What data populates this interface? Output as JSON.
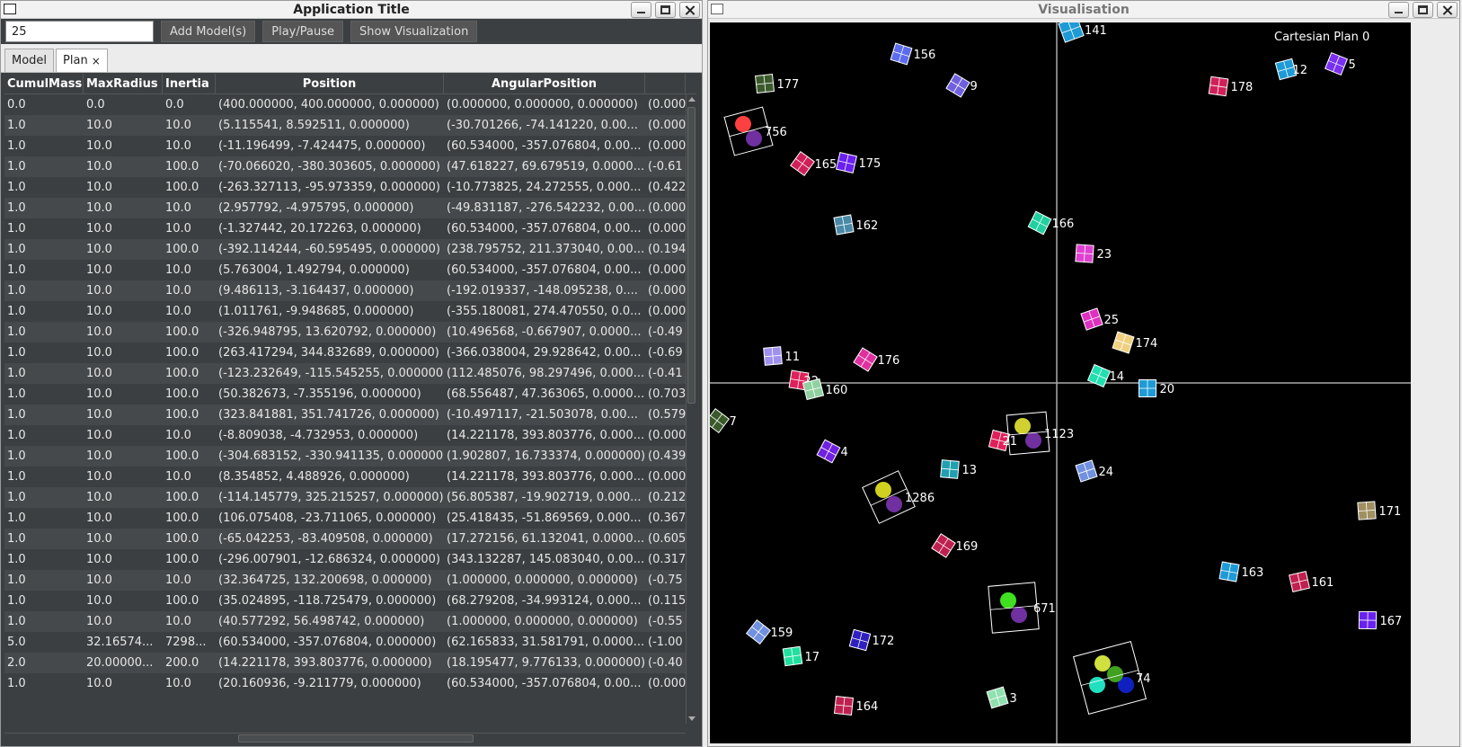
{
  "left_window": {
    "title": "Application Title",
    "toolbar": {
      "count_value": "25",
      "add_label": "Add Model(s)",
      "play_label": "Play/Pause",
      "show_label": "Show Visualization"
    },
    "tabs": [
      {
        "label": "Model"
      },
      {
        "label": "Plan",
        "close": "×"
      }
    ],
    "table": {
      "columns": [
        "CumulMass",
        "MaxRadius",
        "Inertia",
        "Position",
        "AngularPosition",
        ""
      ],
      "rows": [
        [
          "0.0",
          "0.0",
          "0.0",
          "(400.000000, 400.000000, 0.000000)",
          "(0.000000, 0.000000, 0.000000)",
          "(0.000"
        ],
        [
          "1.0",
          "10.0",
          "10.0",
          "(5.115541, 8.592511, 0.000000)",
          "(-30.701266, -74.141220, 0.00...",
          "(0.000"
        ],
        [
          "1.0",
          "10.0",
          "10.0",
          "(-11.196499, -7.424475, 0.000000)",
          "(60.534000, -357.076804, 0.00...",
          "(0.000"
        ],
        [
          "1.0",
          "10.0",
          "100.0",
          "(-70.066020, -380.303605, 0.000000)",
          "(47.618227, 69.679519, 0.0000...",
          "(-0.61"
        ],
        [
          "1.0",
          "10.0",
          "100.0",
          "(-263.327113, -95.973359, 0.000000)",
          "(-10.773825, 24.272555, 0.000...",
          "(0.422"
        ],
        [
          "1.0",
          "10.0",
          "10.0",
          "(2.957792, -4.975795, 0.000000)",
          "(-49.831187, -276.542232, 0.00...",
          "(0.000"
        ],
        [
          "1.0",
          "10.0",
          "10.0",
          "(-1.327442, 20.172263, 0.000000)",
          "(60.534000, -357.076804, 0.00...",
          "(0.000"
        ],
        [
          "1.0",
          "10.0",
          "100.0",
          "(-392.114244, -60.595495, 0.000000)",
          "(238.795752, 211.373040, 0.00...",
          "(0.194"
        ],
        [
          "1.0",
          "10.0",
          "10.0",
          "(5.763004, 1.492794, 0.000000)",
          "(60.534000, -357.076804, 0.00...",
          "(0.000"
        ],
        [
          "1.0",
          "10.0",
          "10.0",
          "(9.486113, -3.164437, 0.000000)",
          "(-192.019337, -148.095238, 0....",
          "(0.000"
        ],
        [
          "1.0",
          "10.0",
          "10.0",
          "(1.011761, -9.948685, 0.000000)",
          "(-355.180081, 274.470550, 0.0...",
          "(0.000"
        ],
        [
          "1.0",
          "10.0",
          "100.0",
          "(-326.948795, 13.620792, 0.000000)",
          "(10.496568, -0.667907, 0.0000...",
          "(-0.49"
        ],
        [
          "1.0",
          "10.0",
          "100.0",
          "(263.417294, 344.832689, 0.000000)",
          "(-366.038004, 29.928642, 0.00...",
          "(-0.69"
        ],
        [
          "1.0",
          "10.0",
          "100.0",
          "(-123.232649, -115.545255, 0.000000)",
          "(112.485076, 98.297496, 0.000...",
          "(-0.41"
        ],
        [
          "1.0",
          "10.0",
          "100.0",
          "(50.382673, -7.355196, 0.000000)",
          "(68.556487, 47.363065, 0.0000...",
          "(0.703"
        ],
        [
          "1.0",
          "10.0",
          "100.0",
          "(323.841881, 351.741726, 0.000000)",
          "(-10.497117, -21.503078, 0.00...",
          "(0.579"
        ],
        [
          "1.0",
          "10.0",
          "10.0",
          "(-8.809038, -4.732953, 0.000000)",
          "(14.221178, 393.803776, 0.000...",
          "(0.000"
        ],
        [
          "1.0",
          "10.0",
          "100.0",
          "(-304.683152, -330.941135, 0.000000)",
          "(1.902807, 16.733374, 0.000000)",
          "(0.439"
        ],
        [
          "1.0",
          "10.0",
          "10.0",
          "(8.354852, 4.488926, 0.000000)",
          "(14.221178, 393.803776, 0.000...",
          "(0.000"
        ],
        [
          "1.0",
          "10.0",
          "100.0",
          "(-114.145779, 325.215257, 0.000000)",
          "(56.805387, -19.902719, 0.000...",
          "(0.212"
        ],
        [
          "1.0",
          "10.0",
          "100.0",
          "(106.075408, -23.711065, 0.000000)",
          "(25.418435, -51.869569, 0.000...",
          "(0.367"
        ],
        [
          "1.0",
          "10.0",
          "100.0",
          "(-65.042253, -83.409508, 0.000000)",
          "(17.272156, 61.132041, 0.0000...",
          "(0.605"
        ],
        [
          "1.0",
          "10.0",
          "100.0",
          "(-296.007901, -12.686324, 0.000000)",
          "(343.132287, 145.083040, 0.00...",
          "(0.317"
        ],
        [
          "1.0",
          "10.0",
          "10.0",
          "(32.364725, 132.200698, 0.000000)",
          "(1.000000, 0.000000, 0.000000)",
          "(-0.75"
        ],
        [
          "1.0",
          "10.0",
          "100.0",
          "(35.024895, -118.725479, 0.000000)",
          "(68.279208, -34.993124, 0.000...",
          "(0.115"
        ],
        [
          "1.0",
          "10.0",
          "10.0",
          "(40.577292, 56.498742, 0.000000)",
          "(1.000000, 0.000000, 0.000000)",
          "(-0.55"
        ],
        [
          "5.0",
          "32.16574...",
          "7298...",
          "(60.534000, -357.076804, 0.000000)",
          "(62.165833, 31.581791, 0.0000...",
          "(-1.00"
        ],
        [
          "2.0",
          "20.00000...",
          "200.0",
          "(14.221178, 393.803776, 0.000000)",
          "(18.195477, 9.776133, 0.000000)",
          "(-0.40"
        ],
        [
          "1.0",
          "10.0",
          "10.0",
          "(20.160936, -9.211779, 0.000000)",
          "(60.534000, -357.076804, 0.00...",
          "(0.000"
        ]
      ]
    }
  },
  "right_window": {
    "title": "Visualisation",
    "plan_label": "Cartesian Plan 0",
    "bodies": [
      {
        "label": "141",
        "color": "#1e9bd6"
      },
      {
        "label": "156",
        "color": "#5c6cf0"
      },
      {
        "label": "177",
        "color": "#3b5a2a"
      },
      {
        "label": "9",
        "color": "#7060e0"
      },
      {
        "label": "178",
        "color": "#d0205a"
      },
      {
        "label": "12",
        "color": "#1e9bd6"
      },
      {
        "label": "5",
        "color": "#7a30f0"
      },
      {
        "label": "756",
        "color": "#ff4040"
      },
      {
        "label": "165",
        "color": "#d0205a"
      },
      {
        "label": "175",
        "color": "#6a20f0"
      },
      {
        "label": "162",
        "color": "#4a8aa8"
      },
      {
        "label": "166",
        "color": "#20d0a0"
      },
      {
        "label": "23",
        "color": "#e040d0"
      },
      {
        "label": "25",
        "color": "#e030c0"
      },
      {
        "label": "174",
        "color": "#f0d080"
      },
      {
        "label": "11",
        "color": "#a090f0"
      },
      {
        "label": "176",
        "color": "#e030a0"
      },
      {
        "label": "22",
        "color": "#e0205a"
      },
      {
        "label": "160",
        "color": "#90d0a0"
      },
      {
        "label": "14",
        "color": "#20e0b0"
      },
      {
        "label": "20",
        "color": "#1e9bd6"
      },
      {
        "label": "7",
        "color": "#3b5a2a"
      },
      {
        "label": "21",
        "color": "#e0205a"
      },
      {
        "label": "1123",
        "color": "#d0d030"
      },
      {
        "label": "4",
        "color": "#7020e0"
      },
      {
        "label": "13",
        "color": "#20a0b0"
      },
      {
        "label": "24",
        "color": "#7090e0"
      },
      {
        "label": "1286",
        "color": "#d0d020"
      },
      {
        "label": "171",
        "color": "#a09060"
      },
      {
        "label": "169",
        "color": "#c02050"
      },
      {
        "label": "163",
        "color": "#1e9bd6"
      },
      {
        "label": "161",
        "color": "#c02050"
      },
      {
        "label": "671",
        "color": "#40e020"
      },
      {
        "label": "167",
        "color": "#6a20f0"
      },
      {
        "label": "159",
        "color": "#7090e0"
      },
      {
        "label": "172",
        "color": "#3020c0"
      },
      {
        "label": "17",
        "color": "#20e0a0"
      },
      {
        "label": "74",
        "color": "#d0e040"
      },
      {
        "label": "164",
        "color": "#c02050"
      },
      {
        "label": "3",
        "color": "#90e0b0"
      }
    ]
  }
}
